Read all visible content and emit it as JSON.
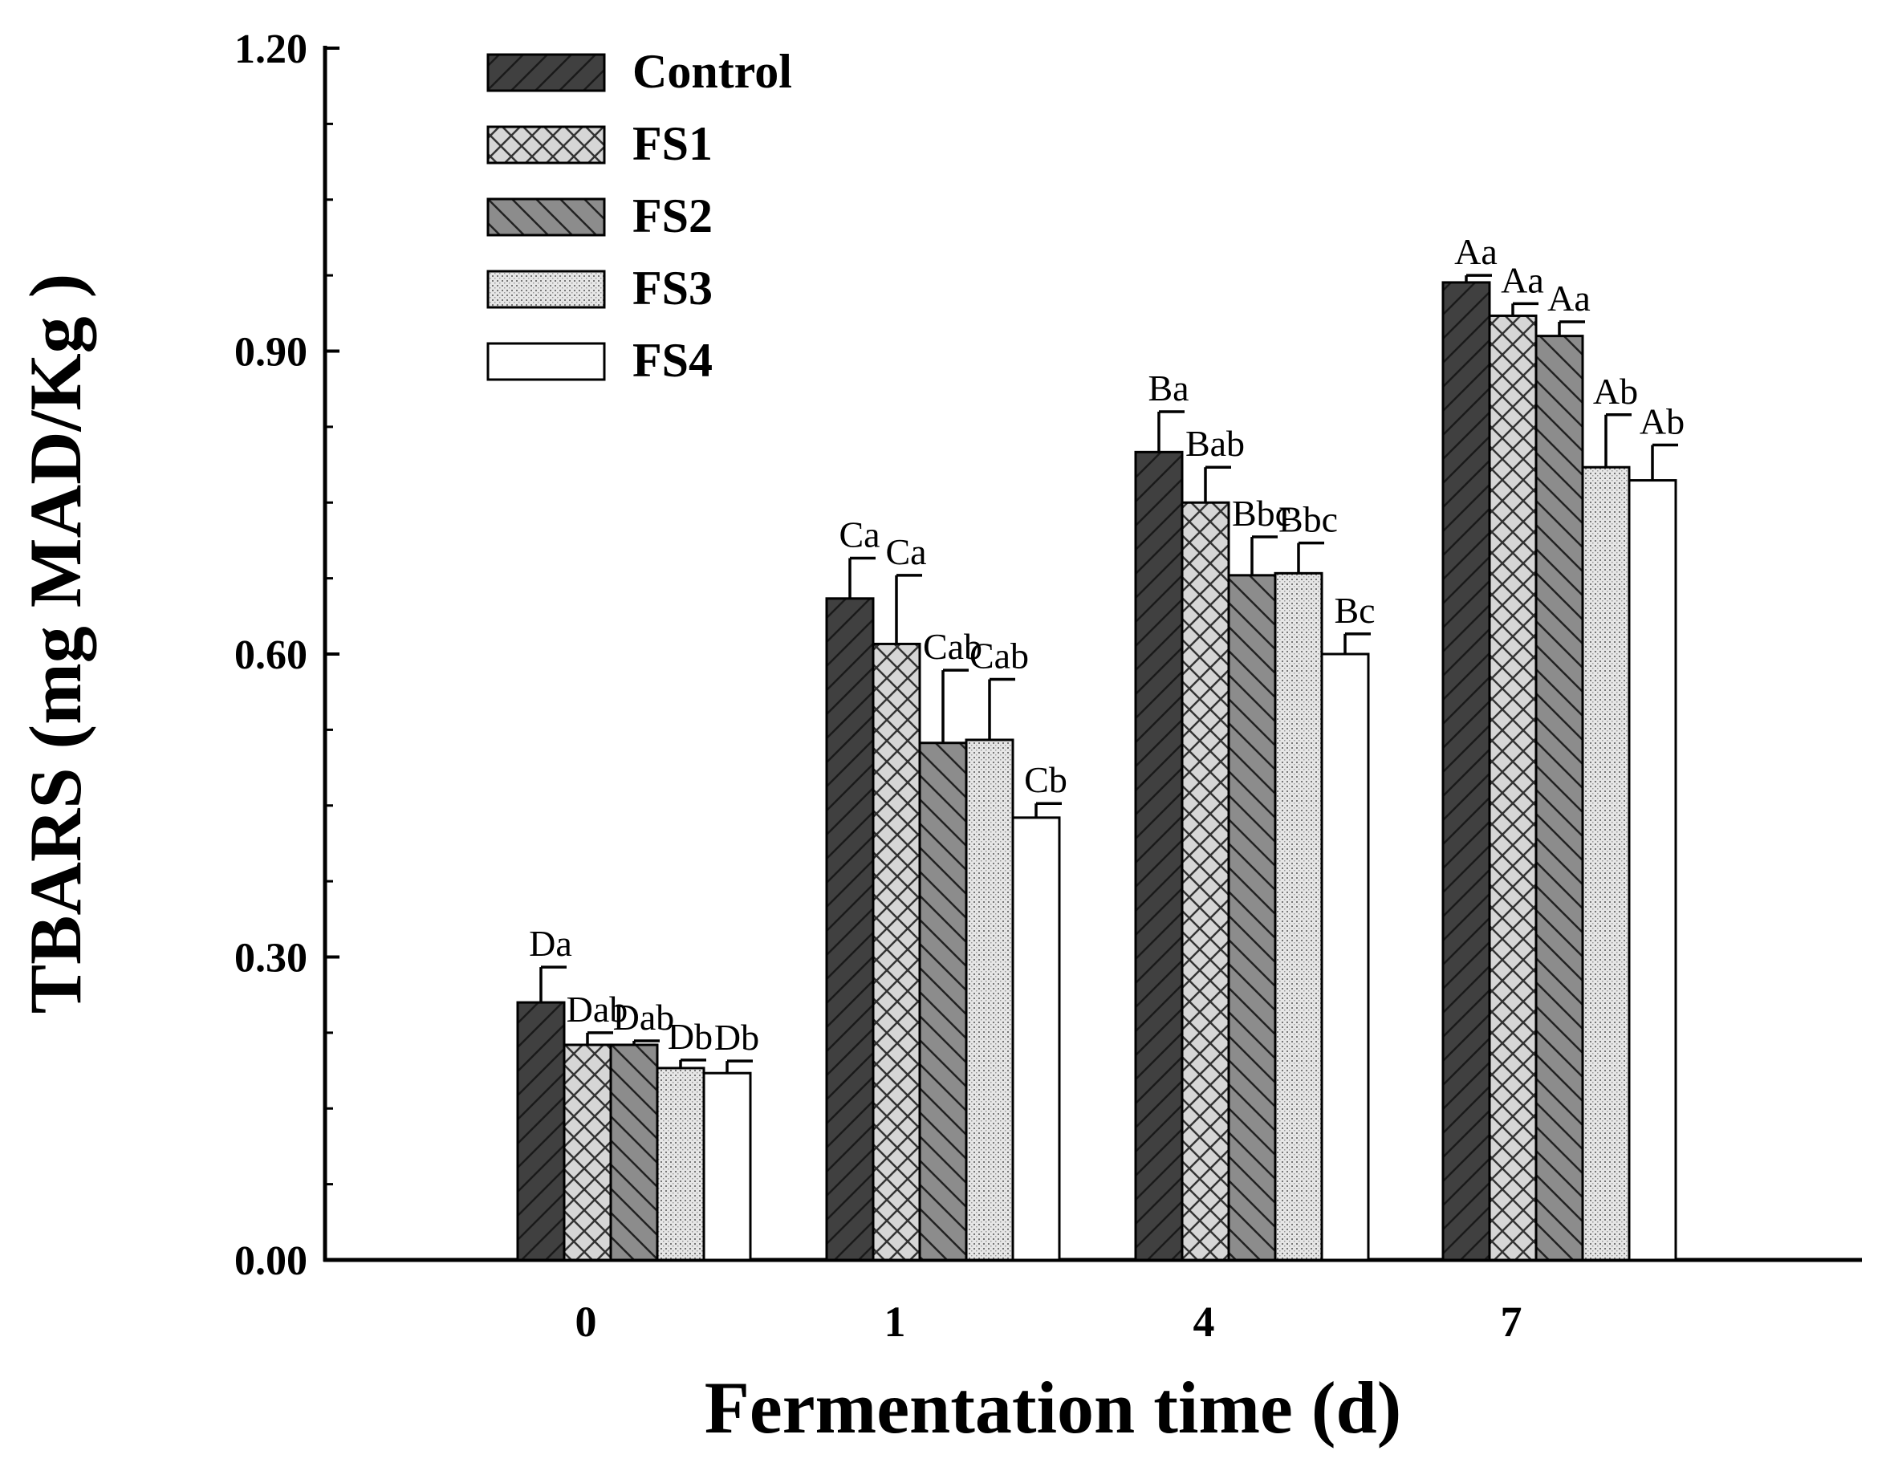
{
  "chart_data": {
    "type": "bar",
    "xlabel": "Fermentation time (d)",
    "ylabel": "TBARS (mg MAD/Kg )",
    "ylim": [
      0,
      1.2
    ],
    "yticks": [
      "0.00",
      "0.30",
      "0.60",
      "0.90",
      "1.20"
    ],
    "ytick_values": [
      0,
      0.3,
      0.6,
      0.9,
      1.2
    ],
    "categories": [
      "0",
      "1",
      "4",
      "7"
    ],
    "legend_position": "top-left",
    "grid": false,
    "series": [
      {
        "name": "Control",
        "pattern": "control",
        "color": "#404040",
        "values": [
          0.255,
          0.655,
          0.8,
          0.968
        ],
        "errors": [
          0.035,
          0.04,
          0.04,
          0.007
        ],
        "labels": [
          "Da",
          "Ca",
          "Ba",
          "Aa"
        ]
      },
      {
        "name": "FS1",
        "pattern": "fs1",
        "color": "#cfcfcf",
        "values": [
          0.213,
          0.61,
          0.75,
          0.935
        ],
        "errors": [
          0.012,
          0.068,
          0.035,
          0.012
        ],
        "labels": [
          "Dab",
          "Ca",
          "Bab",
          "Aa"
        ]
      },
      {
        "name": "FS2",
        "pattern": "fs2",
        "color": "#8c8c8c",
        "values": [
          0.213,
          0.512,
          0.678,
          0.915
        ],
        "errors": [
          0.004,
          0.072,
          0.038,
          0.014
        ],
        "labels": [
          "Dab",
          "Cab",
          "Bbc",
          "Aa"
        ]
      },
      {
        "name": "FS3",
        "pattern": "fs3",
        "color": "#d9d9d9",
        "values": [
          0.19,
          0.515,
          0.68,
          0.785
        ],
        "errors": [
          0.008,
          0.06,
          0.03,
          0.052
        ],
        "labels": [
          "Db",
          "Cab",
          "Bbc",
          "Ab"
        ]
      },
      {
        "name": "FS4",
        "pattern": "fs4",
        "color": "#ffffff",
        "values": [
          0.185,
          0.438,
          0.6,
          0.772
        ],
        "errors": [
          0.012,
          0.014,
          0.02,
          0.035
        ],
        "labels": [
          "Db",
          "Cb",
          "Bc",
          "Ab"
        ]
      }
    ]
  }
}
